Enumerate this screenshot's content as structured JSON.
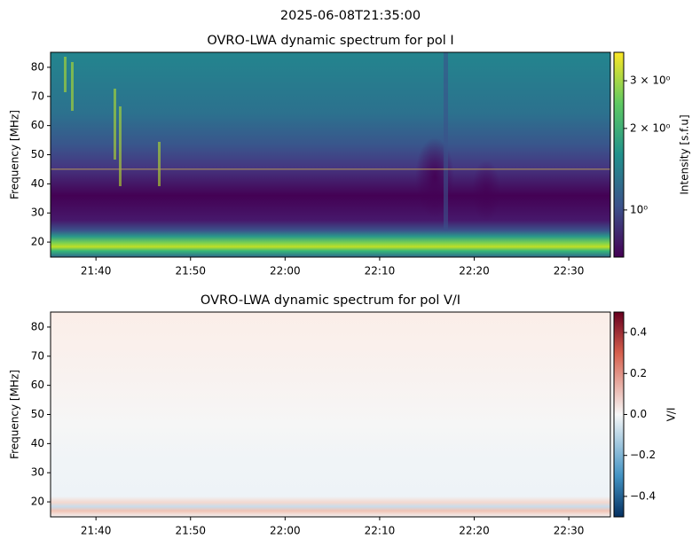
{
  "title": "2025-06-08T21:35:00",
  "chart_data": [
    {
      "type": "heatmap",
      "title": "OVRO-LWA dynamic spectrum for pol I",
      "ylabel": "Frequency [MHz]",
      "xlim": [
        1295.2,
        1354.4
      ],
      "xticks": [
        {
          "value": 1300,
          "label": "21:40"
        },
        {
          "value": 1310,
          "label": "21:50"
        },
        {
          "value": 1320,
          "label": "22:00"
        },
        {
          "value": 1330,
          "label": "22:10"
        },
        {
          "value": 1340,
          "label": "22:20"
        },
        {
          "value": 1350,
          "label": "22:30"
        }
      ],
      "ylim": [
        14.85,
        85.15
      ],
      "yticks": [
        20,
        30,
        40,
        50,
        60,
        70,
        80
      ],
      "colorbar": {
        "label": "Intensity [s.f.u]",
        "scale": "log",
        "colormap": "viridis",
        "lim": [
          0.67,
          3.82
        ],
        "ticks": [
          {
            "value": 1,
            "label": "10⁰"
          },
          {
            "value": 2,
            "label": "2 × 10⁰"
          },
          {
            "value": 3,
            "label": "3 × 10⁰"
          }
        ]
      }
    },
    {
      "type": "heatmap",
      "title": "OVRO-LWA dynamic spectrum for pol V/I",
      "ylabel": "Frequency [MHz]",
      "xlim": [
        1295.2,
        1354.4
      ],
      "xticks": [
        {
          "value": 1300,
          "label": "21:40"
        },
        {
          "value": 1310,
          "label": "21:50"
        },
        {
          "value": 1320,
          "label": "22:00"
        },
        {
          "value": 1330,
          "label": "22:10"
        },
        {
          "value": 1340,
          "label": "22:20"
        },
        {
          "value": 1350,
          "label": "22:30"
        }
      ],
      "ylim": [
        14.85,
        85.15
      ],
      "yticks": [
        20,
        30,
        40,
        50,
        60,
        70,
        80
      ],
      "colorbar": {
        "label": "V/I",
        "scale": "linear",
        "colormap": "RdBu_r",
        "lim": [
          -0.5,
          0.5
        ],
        "ticks": [
          {
            "value": -0.4,
            "label": "−0.4"
          },
          {
            "value": -0.2,
            "label": "−0.2"
          },
          {
            "value": 0,
            "label": "0.0"
          },
          0.2,
          0.4
        ]
      }
    }
  ]
}
